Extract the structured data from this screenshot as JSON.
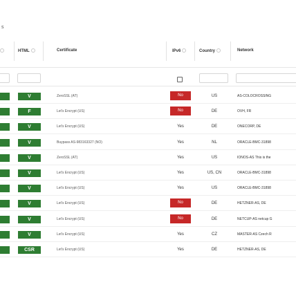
{
  "top_mark": "s",
  "headers": {
    "html": "HTML",
    "certificate": "Certificate",
    "ipv6": "IPv6",
    "country": "Country",
    "network": "Network"
  },
  "rows": [
    {
      "html": "V",
      "certificate": "ZeroSSL (AT)",
      "ipv6": "No",
      "country": "US",
      "network": "AS-COLOCROSSING"
    },
    {
      "html": "F",
      "certificate": "Let's Encrypt (US)",
      "ipv6": "No",
      "country": "DE",
      "network": "OVH, FR"
    },
    {
      "html": "V",
      "certificate": "Let's Encrypt (US)",
      "ipv6": "Yes",
      "country": "DE",
      "network": "ONECORP, DE"
    },
    {
      "html": "V",
      "certificate": "Buypass AS-983163327 (NO)",
      "ipv6": "Yes",
      "country": "NL",
      "network": "ORACLE-BMC-31898"
    },
    {
      "html": "V",
      "certificate": "ZeroSSL (AT)",
      "ipv6": "Yes",
      "country": "US",
      "network": "IONOS-AS This is the"
    },
    {
      "html": "V",
      "certificate": "Let's Encrypt (US)",
      "ipv6": "Yes",
      "country": "US, CN",
      "network": "ORACLE-BMC-31898"
    },
    {
      "html": "V",
      "certificate": "Let's Encrypt (US)",
      "ipv6": "Yes",
      "country": "US",
      "network": "ORACLE-BMC-31898"
    },
    {
      "html": "V",
      "certificate": "Let's Encrypt (US)",
      "ipv6": "No",
      "country": "DE",
      "network": "HETZNER-AS, DE"
    },
    {
      "html": "V",
      "certificate": "Let's Encrypt (US)",
      "ipv6": "No",
      "country": "DE",
      "network": "NETCUP-AS netcup G"
    },
    {
      "html": "V",
      "certificate": "Let's Encrypt (US)",
      "ipv6": "Yes",
      "country": "CZ",
      "network": "MASTER-AS Czech R"
    },
    {
      "html": "CSR",
      "certificate": "Let's Encrypt (US)",
      "ipv6": "Yes",
      "country": "DE",
      "network": "HETZNER-AS, DE"
    }
  ],
  "colors": {
    "chip": "#2e7d32",
    "no": "#c62828"
  }
}
